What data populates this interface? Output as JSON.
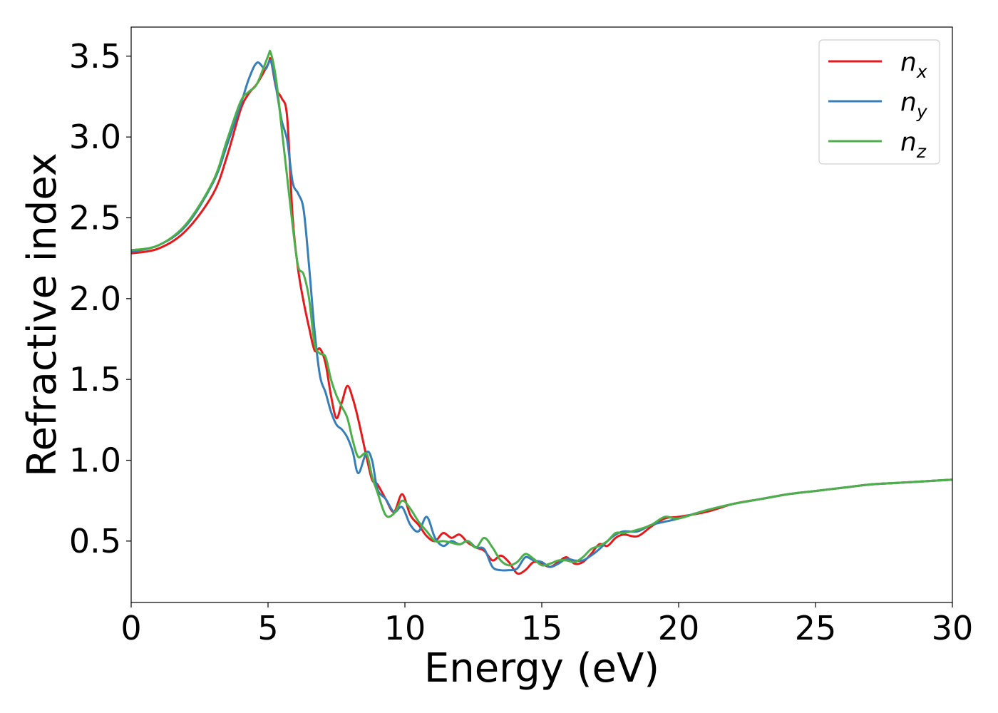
{
  "chart_data": {
    "type": "line",
    "title": "",
    "xlabel": "Energy (eV)",
    "ylabel": "Refractive index",
    "xlim": [
      0,
      30
    ],
    "ylim": [
      0.12,
      3.68
    ],
    "xticks": [
      0,
      5,
      10,
      15,
      20,
      25,
      30
    ],
    "xtick_labels": [
      "0",
      "5",
      "10",
      "15",
      "20",
      "25",
      "30"
    ],
    "yticks": [
      0.5,
      1.0,
      1.5,
      2.0,
      2.5,
      3.0,
      3.5
    ],
    "ytick_labels": [
      "0.5",
      "1.0",
      "1.5",
      "2.0",
      "2.5",
      "3.0",
      "3.5"
    ],
    "grid": false,
    "legend_position": "top-right",
    "series": [
      {
        "name": "n_x",
        "label_base": "n",
        "label_sub": "x",
        "color": "#e41a1c",
        "x": [
          0,
          1,
          2,
          3,
          3.5,
          4,
          4.3,
          4.6,
          5.0,
          5.1,
          5.3,
          5.5,
          5.7,
          5.9,
          6.1,
          6.3,
          6.5,
          6.7,
          6.9,
          7.1,
          7.3,
          7.5,
          7.7,
          7.9,
          8.1,
          8.3,
          8.6,
          8.8,
          9.0,
          9.3,
          9.6,
          9.9,
          10.2,
          10.5,
          10.8,
          11.1,
          11.4,
          11.7,
          12.0,
          12.3,
          12.6,
          12.9,
          13.2,
          13.5,
          13.8,
          14.1,
          14.4,
          14.7,
          15.0,
          15.3,
          15.6,
          15.9,
          16.2,
          16.5,
          16.8,
          17.1,
          17.4,
          17.7,
          18.0,
          18.5,
          19.0,
          19.5,
          20,
          21,
          22,
          23,
          24,
          25,
          26,
          27,
          28,
          29,
          30
        ],
        "y": [
          2.28,
          2.31,
          2.42,
          2.65,
          2.88,
          3.17,
          3.27,
          3.33,
          3.45,
          3.48,
          3.3,
          3.24,
          3.12,
          2.5,
          2.18,
          1.98,
          1.82,
          1.68,
          1.69,
          1.6,
          1.4,
          1.26,
          1.36,
          1.46,
          1.38,
          1.25,
          1.02,
          0.88,
          0.85,
          0.76,
          0.68,
          0.79,
          0.66,
          0.6,
          0.53,
          0.5,
          0.55,
          0.52,
          0.54,
          0.49,
          0.46,
          0.44,
          0.38,
          0.41,
          0.37,
          0.3,
          0.32,
          0.37,
          0.36,
          0.34,
          0.37,
          0.4,
          0.36,
          0.37,
          0.42,
          0.48,
          0.47,
          0.52,
          0.54,
          0.53,
          0.59,
          0.64,
          0.65,
          0.68,
          0.73,
          0.76,
          0.79,
          0.81,
          0.83,
          0.85,
          0.86,
          0.87,
          0.88
        ]
      },
      {
        "name": "n_y",
        "label_base": "n",
        "label_sub": "y",
        "color": "#377eb8",
        "x": [
          0,
          1,
          2,
          3,
          3.5,
          4,
          4.3,
          4.6,
          4.9,
          5.1,
          5.3,
          5.5,
          5.7,
          5.9,
          6.1,
          6.3,
          6.5,
          6.7,
          6.9,
          7.1,
          7.3,
          7.5,
          7.7,
          7.9,
          8.1,
          8.3,
          8.6,
          8.8,
          9.0,
          9.3,
          9.6,
          9.9,
          10.2,
          10.5,
          10.8,
          11.1,
          11.4,
          11.7,
          12.0,
          12.3,
          12.6,
          12.9,
          13.2,
          13.5,
          13.8,
          14.1,
          14.4,
          14.7,
          15.0,
          15.3,
          15.6,
          15.9,
          16.2,
          16.5,
          16.8,
          17.1,
          17.4,
          17.7,
          18.0,
          18.5,
          19.0,
          19.5,
          20,
          21,
          22,
          23,
          24,
          25,
          26,
          27,
          28,
          29,
          30
        ],
        "y": [
          2.29,
          2.33,
          2.45,
          2.72,
          2.95,
          3.2,
          3.36,
          3.46,
          3.42,
          3.47,
          3.3,
          3.1,
          2.98,
          2.72,
          2.65,
          2.55,
          2.2,
          1.8,
          1.52,
          1.42,
          1.3,
          1.22,
          1.19,
          1.14,
          1.05,
          0.92,
          1.05,
          1.0,
          0.82,
          0.76,
          0.68,
          0.71,
          0.6,
          0.56,
          0.65,
          0.52,
          0.47,
          0.5,
          0.48,
          0.5,
          0.46,
          0.45,
          0.34,
          0.32,
          0.32,
          0.33,
          0.4,
          0.38,
          0.37,
          0.34,
          0.36,
          0.39,
          0.38,
          0.38,
          0.41,
          0.45,
          0.5,
          0.54,
          0.56,
          0.56,
          0.6,
          0.62,
          0.64,
          0.69,
          0.73,
          0.76,
          0.79,
          0.81,
          0.83,
          0.85,
          0.86,
          0.87,
          0.88
        ]
      },
      {
        "name": "n_z",
        "label_base": "n",
        "label_sub": "z",
        "color": "#4daf4a",
        "x": [
          0,
          1,
          2,
          3,
          3.5,
          4,
          4.3,
          4.6,
          5.0,
          5.1,
          5.3,
          5.5,
          5.7,
          5.9,
          6.1,
          6.3,
          6.5,
          6.7,
          6.9,
          7.1,
          7.3,
          7.5,
          7.7,
          7.9,
          8.1,
          8.3,
          8.6,
          8.8,
          9.0,
          9.3,
          9.6,
          9.9,
          10.2,
          10.5,
          10.8,
          11.1,
          11.4,
          11.7,
          12.0,
          12.3,
          12.6,
          12.9,
          13.2,
          13.5,
          13.8,
          14.1,
          14.4,
          14.7,
          15.0,
          15.3,
          15.6,
          15.9,
          16.2,
          16.5,
          16.8,
          17.1,
          17.4,
          17.7,
          18.0,
          18.5,
          19.0,
          19.5,
          20,
          21,
          22,
          23,
          24,
          25,
          26,
          27,
          28,
          29,
          30
        ],
        "y": [
          2.3,
          2.33,
          2.46,
          2.73,
          2.98,
          3.22,
          3.28,
          3.33,
          3.5,
          3.52,
          3.35,
          3.05,
          2.75,
          2.45,
          2.2,
          2.15,
          2.0,
          1.72,
          1.66,
          1.64,
          1.5,
          1.4,
          1.33,
          1.26,
          1.12,
          1.02,
          1.04,
          0.9,
          0.8,
          0.66,
          0.67,
          0.75,
          0.7,
          0.62,
          0.56,
          0.5,
          0.5,
          0.49,
          0.48,
          0.5,
          0.46,
          0.52,
          0.46,
          0.38,
          0.35,
          0.37,
          0.42,
          0.39,
          0.35,
          0.36,
          0.38,
          0.38,
          0.37,
          0.4,
          0.45,
          0.47,
          0.5,
          0.55,
          0.55,
          0.57,
          0.6,
          0.65,
          0.64,
          0.69,
          0.73,
          0.76,
          0.79,
          0.81,
          0.83,
          0.85,
          0.86,
          0.87,
          0.88
        ]
      }
    ]
  }
}
